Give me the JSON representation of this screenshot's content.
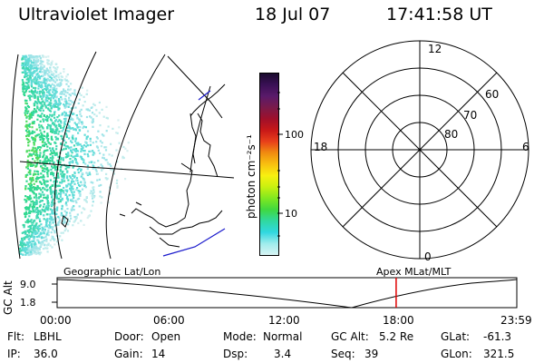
{
  "header": {
    "instrument": "Ultraviolet Imager",
    "date": "18 Jul 07",
    "time": "17:41:58 UT"
  },
  "colorbar": {
    "label": "photon cm⁻²s⁻¹",
    "ticks": [
      "100",
      "10"
    ],
    "colors": [
      "#1a0a2e",
      "#3a1055",
      "#5a1a6a",
      "#7a1a4a",
      "#a0102a",
      "#c81818",
      "#e8401a",
      "#f08c10",
      "#f8c010",
      "#f8f010",
      "#c8f010",
      "#80e820",
      "#40d840",
      "#30d8a0",
      "#30d8e0",
      "#a0ecec",
      "#d8f4f4"
    ],
    "scale": "log"
  },
  "left_map": {
    "label": "Geographic Lat/Lon",
    "coastline_color": "#000000",
    "boundary_color": "#1a1acc"
  },
  "right_map": {
    "label": "Apex  MLat/MLT",
    "mlt_labels": [
      "12",
      "18",
      "6",
      "0"
    ],
    "lat_labels": [
      "60",
      "70",
      "80"
    ]
  },
  "altitude_plot": {
    "ylabel": "GC Alt",
    "yticks": [
      "9.0",
      "1.8"
    ],
    "xticks": [
      "00:00",
      "06:00",
      "12:00",
      "18:00",
      "23:59"
    ],
    "current_marker_color": "#e00000",
    "current_time_hours": 17.7
  },
  "status": {
    "flt_label": "Flt:",
    "flt_value": "LBHL",
    "ip_label": "IP:",
    "ip_value": "36.0",
    "door_label": "Door:",
    "door_value": "Open",
    "gain_label": "Gain:",
    "gain_value": "14",
    "mode_label": "Mode:",
    "mode_value": "Normal",
    "dsp_label": "Dsp:",
    "dsp_value": "3.4",
    "gcalt_label": "GC Alt:",
    "gcalt_value": "5.2 Re",
    "seq_label": "Seq:",
    "seq_value": "39",
    "glat_label": "GLat:",
    "glat_value": "-61.3",
    "glon_label": "GLon:",
    "glon_value": "321.5"
  }
}
